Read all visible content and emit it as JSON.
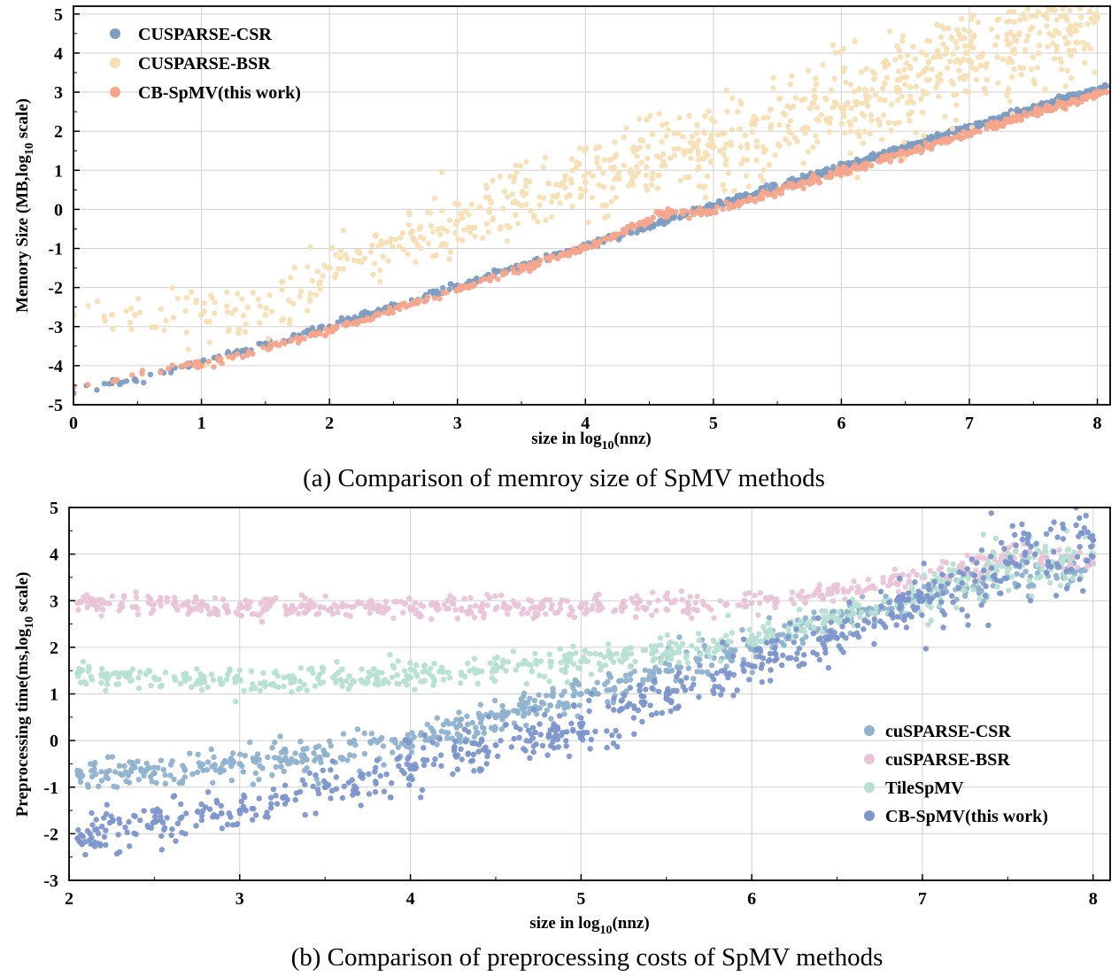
{
  "chart_data": [
    {
      "type": "scatter",
      "caption": "(a) Comparison of memroy size of SpMV methods",
      "xlabel_parts": [
        "size in log",
        "10",
        "(nnz)"
      ],
      "ylabel_parts": [
        "Memory Size (MB,log",
        "10",
        " scale)"
      ],
      "xlim": [
        0,
        8.1
      ],
      "ylim": [
        -5,
        5.2
      ],
      "xticks": [
        0,
        1,
        2,
        3,
        4,
        5,
        6,
        7,
        8
      ],
      "yticks": [
        -5,
        -4,
        -3,
        -2,
        -1,
        0,
        1,
        2,
        3,
        4,
        5
      ],
      "grid": true,
      "legend_position": "top-left",
      "series": [
        {
          "name": "CUSPARSE-CSR",
          "color": "#7d9dc2",
          "points": [
            [
              0,
              -4.7
            ],
            [
              0.3,
              -4.45
            ],
            [
              0.48,
              -4.35
            ],
            [
              0.9,
              -4.0
            ],
            [
              1.0,
              -3.9
            ],
            [
              1.5,
              -3.45
            ],
            [
              2.0,
              -3.0
            ],
            [
              3.0,
              -1.95
            ],
            [
              4.0,
              -0.95
            ],
            [
              5.0,
              0.1
            ],
            [
              6.0,
              1.1
            ],
            [
              7.0,
              2.1
            ],
            [
              8.07,
              3.15
            ]
          ],
          "trend": {
            "slope": 0.99,
            "intercept": -4.85
          }
        },
        {
          "name": "CUSPARSE-BSR",
          "color": "#f7dfb5",
          "points": [
            [
              0,
              -2.7
            ],
            [
              0.3,
              -2.7
            ],
            [
              0.48,
              -2.7
            ],
            [
              1.0,
              -2.7
            ],
            [
              1.5,
              -2.7
            ],
            [
              2.0,
              -1.5
            ],
            [
              3.0,
              -0.3
            ],
            [
              4.0,
              0.7
            ],
            [
              5.0,
              1.6
            ],
            [
              6.0,
              2.6
            ],
            [
              7.0,
              3.8
            ],
            [
              8.0,
              4.9
            ]
          ],
          "trend": {
            "slope": 0.95,
            "intercept": -3.35
          }
        },
        {
          "name": "CB-SpMV(this work)",
          "color": "#f4a58c",
          "points": [
            [
              0,
              -4.55
            ],
            [
              0.9,
              -3.95
            ],
            [
              1.0,
              -4.0
            ],
            [
              2.0,
              -3.1
            ],
            [
              3.0,
              -2.05
            ],
            [
              4.0,
              -1.0
            ],
            [
              4.6,
              -0.1
            ],
            [
              5.0,
              -0.05
            ],
            [
              6.0,
              0.95
            ],
            [
              7.0,
              1.95
            ],
            [
              8.07,
              3.0
            ]
          ],
          "trend": {
            "slope": 0.99,
            "intercept": -5.0
          }
        }
      ]
    },
    {
      "type": "scatter",
      "caption": "(b) Comparison of preprocessing costs of SpMV methods",
      "xlabel_parts": [
        "size in log",
        "10",
        "(nnz)"
      ],
      "ylabel_parts": [
        "Preprocessing time(ms,log",
        "10",
        " scale)"
      ],
      "xlim": [
        2,
        8.1
      ],
      "ylim": [
        -3,
        5
      ],
      "xticks": [
        2,
        3,
        4,
        5,
        6,
        7,
        8
      ],
      "yticks": [
        -3,
        -2,
        -1,
        0,
        1,
        2,
        3,
        4,
        5
      ],
      "grid": true,
      "legend_position": "bottom-right",
      "series": [
        {
          "name": "cuSPARSE-CSR",
          "color": "#8fb2cf",
          "points": [
            [
              2.05,
              -0.65
            ],
            [
              2.5,
              -0.7
            ],
            [
              3.0,
              -0.5
            ],
            [
              3.5,
              -0.3
            ],
            [
              4.0,
              0.0
            ],
            [
              4.5,
              0.5
            ],
            [
              5.0,
              1.0
            ],
            [
              5.5,
              1.5
            ],
            [
              6.0,
              2.0
            ],
            [
              6.5,
              2.6
            ],
            [
              7.0,
              3.1
            ],
            [
              7.5,
              3.5
            ],
            [
              8.0,
              3.8
            ]
          ]
        },
        {
          "name": "cuSPARSE-BSR",
          "color": "#e9c4d8",
          "points": [
            [
              2.05,
              2.95
            ],
            [
              3.0,
              2.85
            ],
            [
              4.0,
              2.85
            ],
            [
              5.0,
              2.85
            ],
            [
              6.0,
              2.95
            ],
            [
              6.5,
              3.2
            ],
            [
              7.0,
              3.5
            ],
            [
              7.5,
              4.0
            ],
            [
              8.0,
              3.8
            ]
          ]
        },
        {
          "name": "TileSpMV",
          "color": "#b6e0d2",
          "points": [
            [
              2.05,
              1.45
            ],
            [
              2.5,
              1.35
            ],
            [
              3.0,
              1.3
            ],
            [
              4.0,
              1.35
            ],
            [
              4.5,
              1.5
            ],
            [
              5.0,
              1.7
            ],
            [
              5.5,
              1.9
            ],
            [
              6.0,
              2.2
            ],
            [
              6.5,
              2.6
            ],
            [
              7.0,
              3.1
            ],
            [
              7.5,
              3.8
            ],
            [
              8.0,
              4.0
            ]
          ]
        },
        {
          "name": "CB-SpMV(this work)",
          "color": "#7c96cc",
          "points": [
            [
              2.05,
              -2.1
            ],
            [
              2.5,
              -1.75
            ],
            [
              3.0,
              -1.5
            ],
            [
              3.5,
              -1.0
            ],
            [
              4.0,
              -0.6
            ],
            [
              4.5,
              -0.1
            ],
            [
              5.0,
              0.3
            ],
            [
              5.5,
              0.9
            ],
            [
              6.0,
              1.6
            ],
            [
              6.5,
              2.2
            ],
            [
              7.0,
              3.0
            ],
            [
              7.5,
              3.8
            ],
            [
              8.0,
              4.3
            ]
          ]
        }
      ]
    }
  ]
}
